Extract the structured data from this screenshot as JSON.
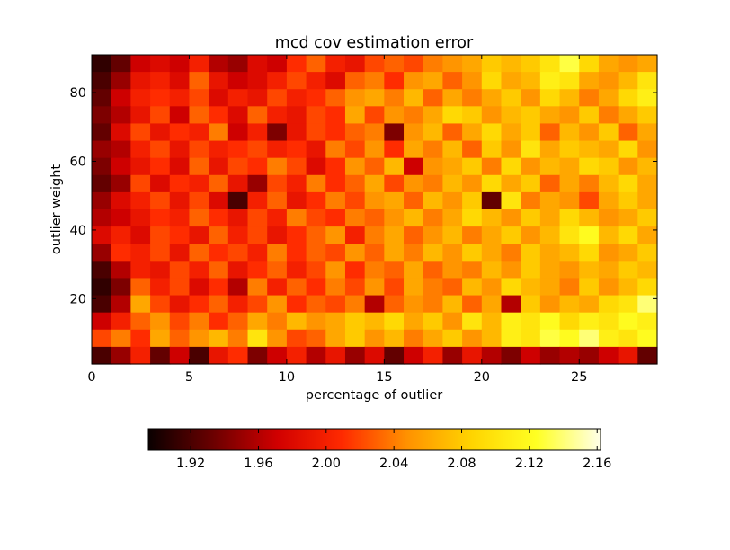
{
  "chart_data": {
    "type": "heatmap",
    "title": "mcd cov estimation error",
    "xlabel": "percentage of outlier",
    "ylabel": "outlier weight",
    "xlim": [
      0,
      29
    ],
    "ylim": [
      1,
      91
    ],
    "x_ticks": [
      0,
      5,
      10,
      15,
      20,
      25
    ],
    "y_ticks": [
      20,
      40,
      60,
      80
    ],
    "colorbar": {
      "orientation": "horizontal",
      "colormap": "hot",
      "vmin": 1.895,
      "vmax": 2.162,
      "ticks": [
        "1.92",
        "1.96",
        "2.00",
        "2.04",
        "2.08",
        "2.12",
        "2.16"
      ],
      "tick_values": [
        1.92,
        1.96,
        2.0,
        2.04,
        2.08,
        2.12,
        2.16
      ],
      "colors": [
        "#0a0000",
        "#6b0000",
        "#d10000",
        "#ff2a00",
        "#ff9100",
        "#ffd400",
        "#ffff22",
        "#ffffe8"
      ]
    },
    "x_columns": [
      0,
      1,
      2,
      3,
      4,
      5,
      6,
      7,
      8,
      9,
      10,
      11,
      12,
      13,
      14,
      15,
      16,
      17,
      18,
      19,
      20,
      21,
      22,
      23,
      24,
      25,
      26,
      27,
      28
    ],
    "y_rows_top_to_bottom": [
      90,
      85,
      80,
      75,
      70,
      65,
      60,
      55,
      50,
      45,
      40,
      35,
      30,
      25,
      20,
      15,
      10,
      5
    ],
    "values": [
      [
        1.91,
        1.93,
        1.97,
        1.98,
        1.97,
        2.0,
        1.96,
        1.95,
        1.98,
        1.97,
        2.01,
        2.03,
        2.0,
        1.99,
        2.02,
        2.03,
        2.02,
        2.04,
        2.05,
        2.06,
        2.08,
        2.07,
        2.08,
        2.1,
        2.13,
        2.09,
        2.06,
        2.05,
        2.06
      ],
      [
        1.92,
        1.95,
        1.99,
        2.0,
        1.98,
        2.03,
        1.99,
        1.97,
        1.98,
        2.0,
        2.02,
        2.0,
        1.98,
        2.03,
        2.04,
        2.01,
        2.05,
        2.06,
        2.03,
        2.05,
        2.09,
        2.06,
        2.07,
        2.11,
        2.1,
        2.06,
        2.05,
        2.07,
        2.1
      ],
      [
        1.93,
        1.97,
        2.0,
        2.01,
        2.0,
        2.02,
        1.98,
        2.0,
        1.99,
        2.02,
        2.0,
        2.01,
        2.03,
        2.05,
        2.06,
        2.04,
        2.07,
        2.03,
        2.06,
        2.04,
        2.06,
        2.08,
        2.05,
        2.09,
        2.07,
        2.04,
        2.06,
        2.09,
        2.11
      ],
      [
        1.94,
        1.96,
        1.99,
        2.02,
        1.97,
        2.03,
        2.01,
        1.98,
        2.03,
        2.0,
        1.99,
        2.02,
        2.01,
        2.06,
        2.02,
        2.05,
        2.04,
        2.06,
        2.09,
        2.08,
        2.05,
        2.07,
        2.08,
        2.06,
        2.05,
        2.08,
        2.04,
        2.06,
        2.08
      ],
      [
        1.93,
        1.98,
        2.02,
        1.99,
        2.01,
        2.0,
        2.04,
        1.97,
        2.0,
        1.94,
        1.99,
        2.02,
        2.01,
        2.03,
        2.04,
        1.94,
        2.05,
        2.07,
        2.03,
        2.06,
        2.09,
        2.06,
        2.08,
        2.03,
        2.07,
        2.05,
        2.08,
        2.03,
        2.06
      ],
      [
        1.95,
        1.96,
        2.0,
        2.02,
        1.99,
        2.02,
        2.0,
        2.01,
        2.02,
        2.0,
        2.01,
        1.99,
        2.04,
        2.02,
        2.05,
        2.01,
        2.06,
        2.04,
        2.07,
        2.03,
        2.08,
        2.05,
        2.1,
        2.06,
        2.08,
        2.07,
        2.06,
        2.09,
        2.05
      ],
      [
        1.94,
        1.97,
        1.99,
        2.01,
        1.98,
        2.03,
        1.99,
        2.02,
        2.01,
        2.04,
        2.02,
        1.98,
        2.01,
        2.05,
        2.03,
        2.07,
        1.97,
        2.05,
        2.06,
        2.08,
        2.04,
        2.09,
        2.05,
        2.07,
        2.06,
        2.09,
        2.08,
        2.05,
        2.07
      ],
      [
        1.93,
        1.95,
        2.02,
        1.98,
        2.01,
        2.0,
        2.03,
        1.99,
        1.95,
        2.02,
        2.0,
        2.04,
        2.01,
        2.03,
        2.06,
        2.02,
        2.05,
        2.04,
        2.07,
        2.05,
        2.09,
        2.06,
        2.08,
        2.03,
        2.06,
        2.04,
        2.07,
        2.09,
        2.06
      ],
      [
        1.95,
        1.98,
        2.0,
        2.02,
        1.99,
        2.02,
        1.98,
        1.92,
        2.0,
        2.03,
        1.99,
        2.01,
        2.04,
        2.02,
        2.05,
        2.06,
        2.03,
        2.07,
        2.05,
        2.08,
        1.93,
        2.1,
        2.04,
        2.06,
        2.05,
        2.02,
        2.06,
        2.08,
        2.06
      ],
      [
        1.96,
        1.97,
        1.99,
        2.01,
        2.0,
        2.03,
        2.01,
        1.99,
        2.02,
        2.0,
        2.04,
        2.02,
        2.01,
        2.04,
        2.03,
        2.05,
        2.07,
        2.04,
        2.06,
        2.09,
        2.07,
        2.05,
        2.08,
        2.06,
        2.09,
        2.07,
        2.05,
        2.06,
        2.08
      ],
      [
        1.98,
        2.0,
        1.98,
        2.02,
        2.01,
        1.99,
        2.03,
        2.0,
        2.02,
        1.99,
        2.01,
        2.03,
        2.05,
        2.0,
        2.04,
        2.06,
        2.03,
        2.05,
        2.07,
        2.04,
        2.06,
        2.08,
        2.05,
        2.07,
        2.1,
        2.12,
        2.07,
        2.09,
        2.06
      ],
      [
        1.95,
        2.01,
        2.0,
        2.02,
        1.99,
        2.03,
        2.01,
        2.02,
        2.0,
        2.04,
        2.01,
        2.03,
        2.02,
        2.05,
        2.03,
        2.06,
        2.04,
        2.07,
        2.05,
        2.08,
        2.06,
        2.04,
        2.08,
        2.06,
        2.07,
        2.09,
        2.05,
        2.06,
        2.08
      ],
      [
        1.92,
        1.96,
        2.0,
        1.99,
        2.02,
        2.0,
        2.03,
        1.99,
        2.01,
        2.03,
        2.0,
        2.02,
        2.05,
        2.01,
        2.04,
        2.03,
        2.06,
        2.03,
        2.05,
        2.04,
        2.07,
        2.05,
        2.08,
        2.06,
        2.05,
        2.07,
        2.06,
        2.08,
        2.07
      ],
      [
        1.91,
        1.94,
        2.03,
        2.0,
        2.02,
        1.98,
        2.01,
        1.96,
        2.04,
        2.0,
        2.03,
        2.01,
        2.04,
        2.02,
        2.05,
        2.02,
        2.06,
        2.04,
        2.03,
        2.07,
        2.05,
        2.09,
        2.07,
        2.06,
        2.04,
        2.08,
        2.05,
        2.07,
        2.09
      ],
      [
        1.92,
        1.96,
        2.06,
        2.02,
        1.99,
        2.01,
        2.03,
        2.0,
        2.02,
        2.05,
        2.01,
        2.03,
        2.02,
        2.04,
        1.96,
        2.03,
        2.05,
        2.04,
        2.07,
        2.03,
        2.06,
        1.96,
        2.08,
        2.05,
        2.07,
        2.06,
        2.09,
        2.1,
        2.14
      ],
      [
        1.97,
        2.0,
        2.03,
        2.05,
        2.02,
        2.04,
        2.01,
        2.03,
        2.06,
        2.04,
        2.07,
        2.05,
        2.06,
        2.08,
        2.07,
        2.09,
        2.06,
        2.08,
        2.05,
        2.1,
        2.07,
        2.11,
        2.1,
        2.12,
        2.09,
        2.11,
        2.1,
        2.12,
        2.11
      ],
      [
        2.02,
        2.04,
        2.01,
        2.06,
        2.03,
        2.05,
        2.07,
        2.04,
        2.1,
        2.05,
        2.02,
        2.03,
        2.06,
        2.08,
        2.05,
        2.07,
        2.04,
        2.06,
        2.08,
        2.05,
        2.07,
        2.11,
        2.1,
        2.13,
        2.12,
        2.14,
        2.11,
        2.1,
        2.12
      ],
      [
        1.92,
        1.95,
        2.0,
        1.93,
        1.97,
        1.92,
        1.99,
        2.01,
        1.94,
        1.97,
        2.0,
        1.96,
        1.99,
        1.95,
        1.98,
        1.93,
        1.97,
        2.0,
        1.95,
        1.99,
        1.96,
        1.94,
        1.97,
        1.95,
        1.96,
        1.95,
        1.97,
        1.99,
        1.93
      ]
    ]
  }
}
